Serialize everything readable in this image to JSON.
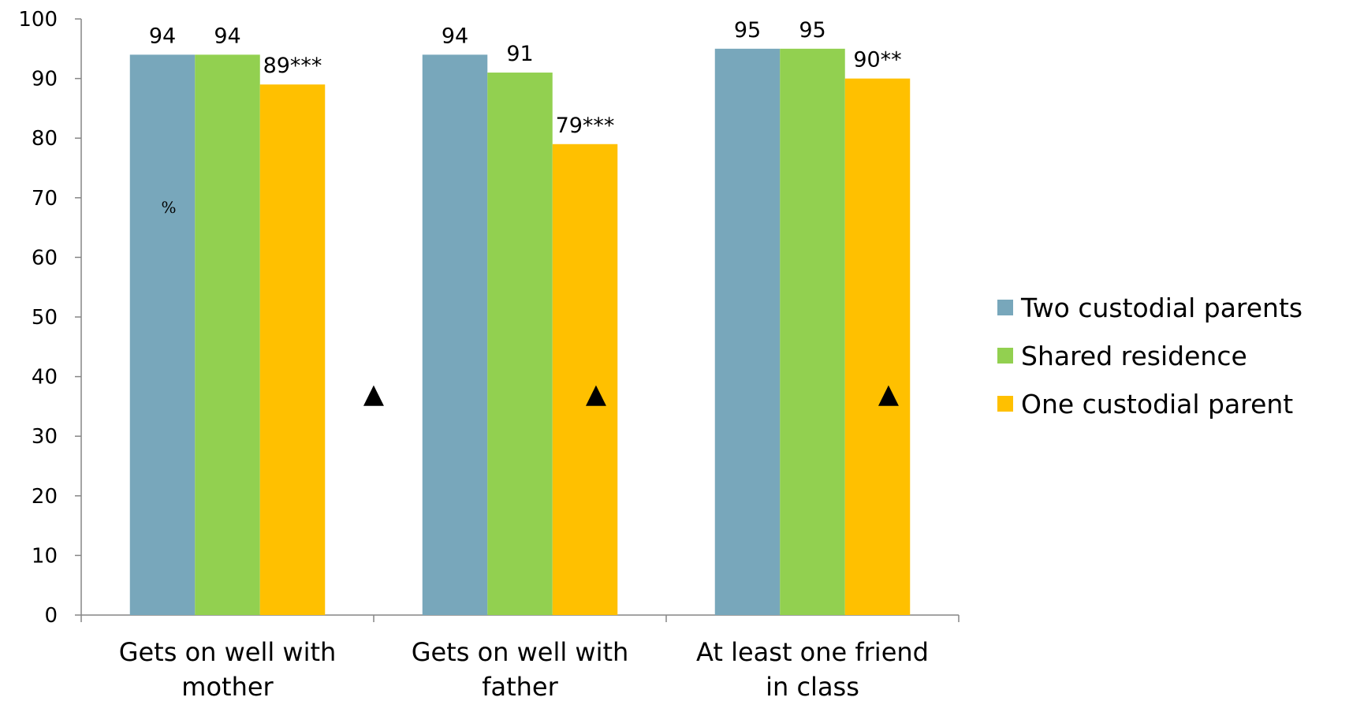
{
  "chart_data": {
    "type": "bar",
    "unit_label": "%",
    "categories": [
      [
        "Gets on well with",
        "mother"
      ],
      [
        "Gets on well with",
        "father"
      ],
      [
        "At least one friend",
        "in class"
      ]
    ],
    "series": [
      {
        "name": "Two custodial parents",
        "color": "#78a7bb",
        "values": [
          94,
          94,
          95
        ],
        "labels": [
          "94",
          "94",
          "95"
        ]
      },
      {
        "name": "Shared residence",
        "color": "#92d050",
        "values": [
          94,
          91,
          95
        ],
        "labels": [
          "94",
          "91",
          "95"
        ]
      },
      {
        "name": "One custodial parent",
        "color": "#ffc000",
        "values": [
          89,
          79,
          90
        ],
        "labels": [
          "89***",
          "79***",
          "90**"
        ]
      }
    ],
    "ylim": [
      0,
      100
    ],
    "yticks": [
      0,
      10,
      20,
      30,
      40,
      50,
      60,
      70,
      80,
      90,
      100
    ],
    "markers": [
      {
        "symbol": "▲",
        "category_boundary": 1,
        "value": 37.5
      },
      {
        "symbol": "▲",
        "category": 2,
        "value": 37.5
      },
      {
        "symbol": "▲",
        "category": 3,
        "value": 37.5
      }
    ],
    "legend_position": "right",
    "grid": false
  }
}
